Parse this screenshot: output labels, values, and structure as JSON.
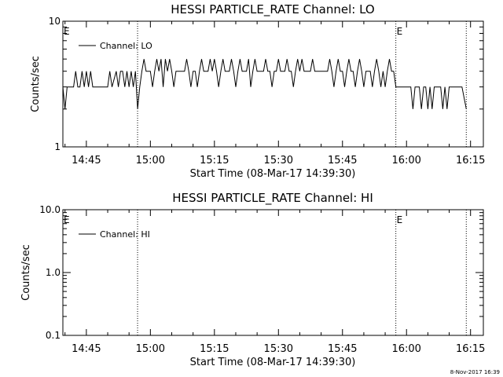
{
  "chart_data": [
    {
      "type": "line",
      "title": "HESSI PARTICLE_RATE Channel: LO",
      "xlabel": "Start Time (08-Mar-17 14:39:30)",
      "ylabel": "Counts/sec",
      "yscale": "log",
      "ylim": [
        1,
        10
      ],
      "yticks": [
        1,
        10
      ],
      "ytick_labels": [
        "1",
        "10"
      ],
      "xlim": [
        "14:39:30",
        "16:18:00"
      ],
      "xticks": [
        "14:45",
        "15:00",
        "15:15",
        "15:30",
        "15:45",
        "16:00",
        "16:15"
      ],
      "vlines": [
        "14:57:00",
        "15:57:30",
        "16:14:00"
      ],
      "flags": [
        {
          "text": "E",
          "x": "14:39:30"
        },
        {
          "text": "E",
          "x": "15:57:30"
        }
      ],
      "legend_placement": "top-left",
      "series": [
        {
          "name": "Channel: LO",
          "color": "#000000",
          "points": [
            [
              "14:39:30",
              3
            ],
            [
              "14:40:00",
              2
            ],
            [
              "14:40:30",
              3
            ],
            [
              "14:41:00",
              3
            ],
            [
              "14:41:30",
              3
            ],
            [
              "14:42:00",
              3
            ],
            [
              "14:42:30",
              4
            ],
            [
              "14:43:00",
              3
            ],
            [
              "14:43:30",
              3
            ],
            [
              "14:44:00",
              4
            ],
            [
              "14:44:30",
              3
            ],
            [
              "14:45:00",
              4
            ],
            [
              "14:45:30",
              3
            ],
            [
              "14:46:00",
              4
            ],
            [
              "14:46:30",
              3
            ],
            [
              "14:47:00",
              3
            ],
            [
              "14:48:00",
              3
            ],
            [
              "14:49:00",
              3
            ],
            [
              "14:50:00",
              3
            ],
            [
              "14:50:30",
              4
            ],
            [
              "14:51:00",
              3
            ],
            [
              "14:52:00",
              4
            ],
            [
              "14:52:30",
              3
            ],
            [
              "14:53:00",
              4
            ],
            [
              "14:53:30",
              4
            ],
            [
              "14:54:00",
              3
            ],
            [
              "14:54:30",
              4
            ],
            [
              "14:55:00",
              3
            ],
            [
              "14:55:30",
              4
            ],
            [
              "14:56:00",
              3
            ],
            [
              "14:56:30",
              4
            ],
            [
              "14:57:00",
              2
            ],
            [
              "14:57:30",
              3
            ],
            [
              "14:58:00",
              4
            ],
            [
              "14:58:30",
              5
            ],
            [
              "14:59:00",
              4
            ],
            [
              "14:59:30",
              4
            ],
            [
              "15:00:00",
              4
            ],
            [
              "15:00:30",
              3
            ],
            [
              "15:01:00",
              4
            ],
            [
              "15:01:30",
              5
            ],
            [
              "15:02:00",
              4
            ],
            [
              "15:02:30",
              5
            ],
            [
              "15:03:00",
              3
            ],
            [
              "15:03:30",
              5
            ],
            [
              "15:04:00",
              4
            ],
            [
              "15:04:30",
              5
            ],
            [
              "15:05:00",
              4
            ],
            [
              "15:05:30",
              3
            ],
            [
              "15:06:00",
              4
            ],
            [
              "15:06:30",
              4
            ],
            [
              "15:07:00",
              4
            ],
            [
              "15:07:30",
              4
            ],
            [
              "15:08:00",
              4
            ],
            [
              "15:08:30",
              5
            ],
            [
              "15:09:00",
              4
            ],
            [
              "15:09:30",
              3
            ],
            [
              "15:10:00",
              4
            ],
            [
              "15:10:30",
              4
            ],
            [
              "15:11:00",
              3
            ],
            [
              "15:11:30",
              4
            ],
            [
              "15:12:00",
              5
            ],
            [
              "15:12:30",
              4
            ],
            [
              "15:13:00",
              4
            ],
            [
              "15:13:30",
              4
            ],
            [
              "15:14:00",
              5
            ],
            [
              "15:14:30",
              4
            ],
            [
              "15:15:00",
              5
            ],
            [
              "15:15:30",
              4
            ],
            [
              "15:16:00",
              3
            ],
            [
              "15:16:30",
              4
            ],
            [
              "15:17:00",
              5
            ],
            [
              "15:17:30",
              4
            ],
            [
              "15:18:00",
              4
            ],
            [
              "15:18:30",
              4
            ],
            [
              "15:19:00",
              5
            ],
            [
              "15:19:30",
              4
            ],
            [
              "15:20:00",
              3
            ],
            [
              "15:20:30",
              4
            ],
            [
              "15:21:00",
              5
            ],
            [
              "15:21:30",
              4
            ],
            [
              "15:22:00",
              4
            ],
            [
              "15:22:30",
              4
            ],
            [
              "15:23:00",
              5
            ],
            [
              "15:23:30",
              3
            ],
            [
              "15:24:00",
              4
            ],
            [
              "15:24:30",
              5
            ],
            [
              "15:25:00",
              4
            ],
            [
              "15:25:30",
              4
            ],
            [
              "15:26:00",
              4
            ],
            [
              "15:26:30",
              4
            ],
            [
              "15:27:00",
              5
            ],
            [
              "15:27:30",
              4
            ],
            [
              "15:28:00",
              4
            ],
            [
              "15:28:30",
              3
            ],
            [
              "15:29:00",
              4
            ],
            [
              "15:29:30",
              4
            ],
            [
              "15:30:00",
              5
            ],
            [
              "15:30:30",
              4
            ],
            [
              "15:31:00",
              4
            ],
            [
              "15:31:30",
              4
            ],
            [
              "15:32:00",
              5
            ],
            [
              "15:32:30",
              4
            ],
            [
              "15:33:00",
              4
            ],
            [
              "15:33:30",
              3
            ],
            [
              "15:34:00",
              4
            ],
            [
              "15:34:30",
              5
            ],
            [
              "15:35:00",
              4
            ],
            [
              "15:35:30",
              5
            ],
            [
              "15:36:00",
              4
            ],
            [
              "15:36:30",
              4
            ],
            [
              "15:37:00",
              4
            ],
            [
              "15:37:30",
              4
            ],
            [
              "15:38:00",
              5
            ],
            [
              "15:38:30",
              4
            ],
            [
              "15:39:00",
              4
            ],
            [
              "15:39:30",
              4
            ],
            [
              "15:40:00",
              4
            ],
            [
              "15:40:30",
              4
            ],
            [
              "15:41:00",
              4
            ],
            [
              "15:41:30",
              4
            ],
            [
              "15:42:00",
              5
            ],
            [
              "15:42:30",
              4
            ],
            [
              "15:43:00",
              3
            ],
            [
              "15:43:30",
              4
            ],
            [
              "15:44:00",
              5
            ],
            [
              "15:44:30",
              4
            ],
            [
              "15:45:00",
              4
            ],
            [
              "15:45:30",
              3
            ],
            [
              "15:46:00",
              4
            ],
            [
              "15:46:30",
              5
            ],
            [
              "15:47:00",
              4
            ],
            [
              "15:47:30",
              4
            ],
            [
              "15:48:00",
              3
            ],
            [
              "15:48:30",
              4
            ],
            [
              "15:49:00",
              5
            ],
            [
              "15:49:30",
              4
            ],
            [
              "15:50:00",
              3
            ],
            [
              "15:50:30",
              4
            ],
            [
              "15:51:00",
              4
            ],
            [
              "15:51:30",
              4
            ],
            [
              "15:52:00",
              3
            ],
            [
              "15:52:30",
              4
            ],
            [
              "15:53:00",
              5
            ],
            [
              "15:53:30",
              4
            ],
            [
              "15:54:00",
              3
            ],
            [
              "15:54:30",
              4
            ],
            [
              "15:55:00",
              3
            ],
            [
              "15:55:30",
              4
            ],
            [
              "15:56:00",
              5
            ],
            [
              "15:56:30",
              4
            ],
            [
              "15:57:00",
              4
            ],
            [
              "15:57:30",
              3
            ],
            [
              "15:58:00",
              3
            ],
            [
              "15:59:00",
              3
            ],
            [
              "16:00:00",
              3
            ],
            [
              "16:01:00",
              3
            ],
            [
              "16:01:30",
              2
            ],
            [
              "16:02:00",
              3
            ],
            [
              "16:03:00",
              3
            ],
            [
              "16:03:30",
              2
            ],
            [
              "16:04:00",
              3
            ],
            [
              "16:04:30",
              3
            ],
            [
              "16:05:00",
              2
            ],
            [
              "16:05:30",
              3
            ],
            [
              "16:06:00",
              2
            ],
            [
              "16:06:30",
              3
            ],
            [
              "16:07:00",
              3
            ],
            [
              "16:08:00",
              3
            ],
            [
              "16:08:30",
              2
            ],
            [
              "16:09:00",
              3
            ],
            [
              "16:09:30",
              2
            ],
            [
              "16:10:00",
              3
            ],
            [
              "16:11:00",
              3
            ],
            [
              "16:12:00",
              3
            ],
            [
              "16:13:00",
              3
            ],
            [
              "16:14:00",
              2
            ]
          ]
        }
      ]
    },
    {
      "type": "line",
      "title": "HESSI PARTICLE_RATE Channel: HI",
      "xlabel": "Start Time (08-Mar-17 14:39:30)",
      "ylabel": "Counts/sec",
      "yscale": "log",
      "ylim": [
        0.1,
        10
      ],
      "yticks": [
        0.1,
        1,
        10
      ],
      "ytick_labels": [
        "0.1",
        "1.0",
        "10.0"
      ],
      "xlim": [
        "14:39:30",
        "16:18:00"
      ],
      "xticks": [
        "14:45",
        "15:00",
        "15:15",
        "15:30",
        "15:45",
        "16:00",
        "16:15"
      ],
      "vlines": [
        "14:57:00",
        "15:57:30",
        "16:14:00"
      ],
      "flags": [
        {
          "text": "E",
          "x": "14:39:30"
        },
        {
          "text": "E",
          "x": "15:57:30"
        }
      ],
      "legend_placement": "top-left",
      "series": [
        {
          "name": "Channel: HI",
          "color": "#000000",
          "points": []
        }
      ]
    }
  ],
  "footer": {
    "timestamp": "8-Nov-2017 16:39"
  }
}
